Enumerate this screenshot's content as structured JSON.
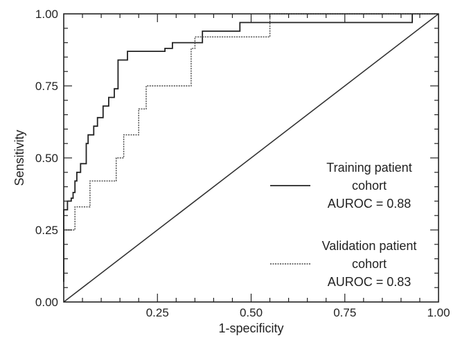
{
  "chart_data": {
    "type": "line",
    "xlabel": "1-specificity",
    "ylabel": "Sensitivity",
    "xlim": [
      0,
      1
    ],
    "ylim": [
      0,
      1
    ],
    "xticks": [
      "0.25",
      "0.50",
      "0.75",
      "1.00"
    ],
    "yticks": [
      "0.00",
      "0.25",
      "0.50",
      "0.75",
      "1.00"
    ],
    "grid": false,
    "legend_position": "right",
    "reference_line": {
      "x": [
        0,
        1
      ],
      "y": [
        0,
        1
      ]
    },
    "series": [
      {
        "legend_lines": [
          "Training patient",
          "cohort",
          "AUROC = 0.88"
        ],
        "style": "solid",
        "color": "#222222",
        "x": [
          0.0,
          0.0,
          0.01,
          0.01,
          0.02,
          0.02,
          0.025,
          0.025,
          0.03,
          0.03,
          0.035,
          0.035,
          0.045,
          0.045,
          0.06,
          0.06,
          0.065,
          0.065,
          0.08,
          0.08,
          0.09,
          0.09,
          0.105,
          0.105,
          0.12,
          0.12,
          0.135,
          0.135,
          0.145,
          0.145,
          0.17,
          0.17,
          0.27,
          0.27,
          0.29,
          0.29,
          0.37,
          0.37,
          0.47,
          0.47,
          0.93,
          0.93
        ],
        "y": [
          0.07,
          0.32,
          0.32,
          0.35,
          0.35,
          0.36,
          0.36,
          0.38,
          0.38,
          0.42,
          0.42,
          0.45,
          0.45,
          0.48,
          0.48,
          0.55,
          0.55,
          0.58,
          0.58,
          0.61,
          0.61,
          0.64,
          0.64,
          0.68,
          0.68,
          0.71,
          0.71,
          0.74,
          0.74,
          0.84,
          0.84,
          0.87,
          0.87,
          0.88,
          0.88,
          0.9,
          0.9,
          0.94,
          0.94,
          0.97,
          0.97,
          1.0
        ]
      },
      {
        "legend_lines": [
          "Validation patient",
          "cohort",
          "AUROC = 0.83"
        ],
        "style": "dotted",
        "color": "#444444",
        "x": [
          0.0,
          0.0,
          0.01,
          0.01,
          0.03,
          0.03,
          0.07,
          0.07,
          0.14,
          0.14,
          0.16,
          0.16,
          0.2,
          0.2,
          0.22,
          0.22,
          0.34,
          0.34,
          0.35,
          0.35,
          0.38,
          0.38,
          0.55,
          0.55,
          1.0
        ],
        "y": [
          0.08,
          0.25,
          0.25,
          0.25,
          0.25,
          0.33,
          0.33,
          0.42,
          0.42,
          0.5,
          0.5,
          0.58,
          0.58,
          0.67,
          0.67,
          0.75,
          0.75,
          0.88,
          0.88,
          0.92,
          0.92,
          0.92,
          0.92,
          1.0,
          1.0
        ]
      }
    ]
  }
}
